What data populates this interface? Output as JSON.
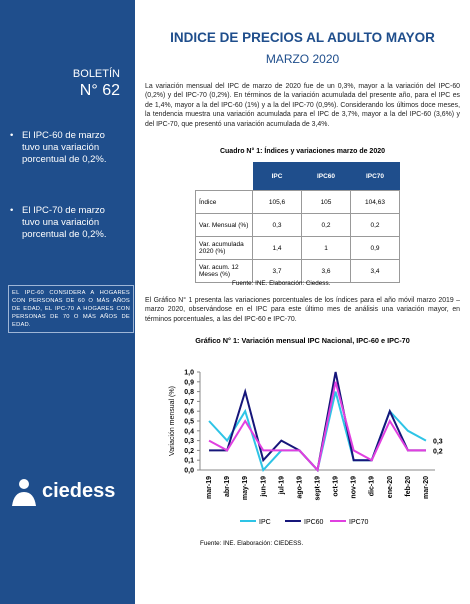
{
  "header": {
    "title": "INDICE DE PRECIOS AL ADULTO MAYOR",
    "subtitle": "MARZO 2020"
  },
  "sidebar": {
    "label": "BOLETÍN",
    "number": "N° 62",
    "bullets": [
      "El IPC-60 de marzo tuvo una variación porcentual de 0,2%.",
      "El IPC-70 de marzo tuvo una variación porcentual de 0,2%."
    ],
    "note": "EL IPC-60 CONSIDERA A HOGARES CON PERSONAS DE 60 O MÁS AÑOS DE EDAD, EL IPC-70 A HOGARES CON PERSONAS DE 70 O MÁS AÑOS DE EDAD.",
    "logo": "ciedess"
  },
  "paragraphs": [
    "La variación mensual del IPC de marzo de 2020 fue de un 0,3%, mayor a la variación del IPC-60 (0,2%) y del IPC-70 (0,2%). En términos de la variación acumulada del presente año, para el IPC es de 1,4%, mayor a la del IPC-60 (1%) y a la del IPC-70 (0,9%). Considerando los últimos doce meses, la tendencia muestra una variación acumulada para el IPC de 3,7%, mayor a la del IPC-60 (3,6%) y del IPC-70, que presentó una variación acumulada de 3,4%.",
    "El Gráfico N° 1 presenta las variaciones porcentuales de los índices para el año móvil marzo 2019 – marzo 2020, observándose en el IPC para este último mes de análisis una variación mayor, en términos porcentuales, a las del IPC-60 e IPC-70."
  ],
  "table": {
    "caption": "Cuadro N° 1: Índices y variaciones marzo de 2020",
    "header": [
      "IPC",
      "IPC60",
      "IPC70"
    ],
    "rows": [
      [
        "Índice",
        "105,6",
        "105",
        "104,63"
      ],
      [
        "Var. Mensual (%)",
        "0,3",
        "0,2",
        "0,2"
      ],
      [
        "Var. acumulada 2020 (%)",
        "1,4",
        "1",
        "0,9"
      ],
      [
        "Var. acum. 12 Meses (%)",
        "3,7",
        "3,6",
        "3,4"
      ]
    ],
    "source": "Fuente: INE. Elaboración: Ciedess."
  },
  "chart_data": {
    "type": "line",
    "title": "Gráfico N° 1: Variación mensual IPC Nacional, IPC-60 e IPC-70",
    "y_label": "Variación mensual (%)",
    "categories": [
      "mar-19",
      "abr-19",
      "may-19",
      "jun-19",
      "jul-19",
      "ago-19",
      "sept-19",
      "oct-19",
      "nov-19",
      "dic-19",
      "ene-20",
      "feb-20",
      "mar-20"
    ],
    "series": [
      {
        "name": "IPC",
        "color": "#2ec4e6",
        "values": [
          0.5,
          0.3,
          0.6,
          0.0,
          0.2,
          0.2,
          0.0,
          0.8,
          0.1,
          0.1,
          0.6,
          0.4,
          0.3
        ],
        "value_labels": [
          null,
          null,
          null,
          null,
          null,
          null,
          null,
          null,
          null,
          null,
          null,
          null,
          "0,3"
        ]
      },
      {
        "name": "IPC60",
        "color": "#16167a",
        "values": [
          0.2,
          0.2,
          0.8,
          0.1,
          0.3,
          0.2,
          0.0,
          1.0,
          0.1,
          0.1,
          0.6,
          0.2,
          0.2
        ],
        "value_labels": [
          null,
          null,
          null,
          null,
          null,
          null,
          null,
          null,
          null,
          null,
          null,
          null,
          "0,2"
        ]
      },
      {
        "name": "IPC70",
        "color": "#e040e0",
        "values": [
          0.3,
          0.2,
          0.5,
          0.2,
          0.2,
          0.2,
          0.0,
          0.9,
          0.2,
          0.1,
          0.5,
          0.2,
          0.2
        ]
      }
    ],
    "ylim": [
      0,
      1.0
    ],
    "yticks": [
      {
        "value": 0,
        "label": "0,0"
      },
      {
        "value": 0.1,
        "label": "0,1"
      },
      {
        "value": 0.2,
        "label": "0,2"
      },
      {
        "value": 0.3,
        "label": "0,3"
      },
      {
        "value": 0.4,
        "label": "0,4"
      },
      {
        "value": 0.5,
        "label": "0,5"
      },
      {
        "value": 0.6,
        "label": "0,6"
      },
      {
        "value": 0.7,
        "label": "0,7"
      },
      {
        "value": 0.8,
        "label": "0,8"
      },
      {
        "value": 0.9,
        "label": "0,9"
      },
      {
        "value": 1.0,
        "label": "1,0"
      }
    ],
    "grid": false,
    "legend": "bottom",
    "source": "Fuente: INE. Elaboración: CIEDESS."
  }
}
